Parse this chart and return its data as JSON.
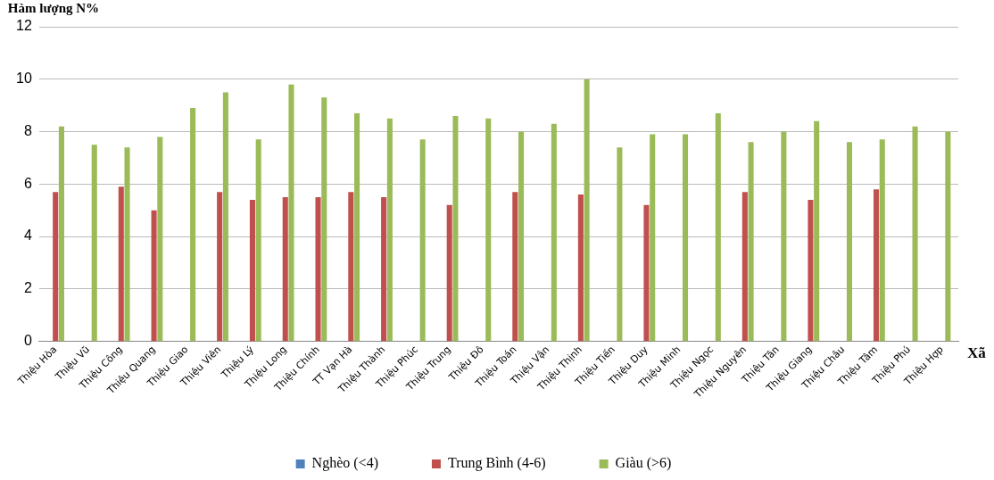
{
  "chart_data": {
    "type": "bar",
    "ylabel": "Hàm lượng N%",
    "xlabel": "Xã",
    "categories": [
      "Thiệu Hòa",
      "Thiệu Vũ",
      "Thiệu Công",
      "Thiệu Quang",
      "Thiệu Giao",
      "Thiệu Viên",
      "Thiệu Lý",
      "Thiệu Long",
      "Thiệu Chính",
      "TT Vạn Hà",
      "Thiệu Thành",
      "Thiệu Phúc",
      "Thiệu Trung",
      "Thiệu Đô",
      "Thiệu Toán",
      "Thiệu Vận",
      "Thiệu Thịnh",
      "Thiệu Tiến",
      "Thiệu Duy",
      "Thiệu Minh",
      "Thiệu Ngọc",
      "Thiệu Nguyên",
      "Thiệu Tân",
      "Thiệu Giang",
      "Thiệu Châu",
      "Thiệu Tâm",
      "Thiệu Phú",
      "Thiệu Hợp"
    ],
    "series": [
      {
        "name": "Nghèo (<4)",
        "color": "#4f81bd",
        "values": [
          null,
          null,
          null,
          null,
          null,
          null,
          null,
          null,
          null,
          null,
          null,
          null,
          null,
          null,
          null,
          null,
          null,
          null,
          null,
          null,
          null,
          null,
          null,
          null,
          null,
          null,
          null,
          null
        ]
      },
      {
        "name": "Trung Bình (4-6)",
        "color": "#c0504d",
        "values": [
          5.7,
          null,
          5.9,
          5.0,
          null,
          5.7,
          5.4,
          5.5,
          5.5,
          5.7,
          5.5,
          null,
          5.2,
          null,
          5.7,
          null,
          5.6,
          null,
          5.2,
          null,
          null,
          5.7,
          null,
          5.4,
          null,
          5.8,
          null,
          null
        ]
      },
      {
        "name": "Giàu (>6)",
        "color": "#9bbb59",
        "values": [
          8.2,
          7.5,
          7.4,
          7.8,
          8.9,
          9.5,
          7.7,
          9.8,
          9.3,
          8.7,
          8.5,
          7.7,
          8.6,
          8.5,
          8.0,
          8.3,
          10.0,
          7.4,
          7.9,
          7.9,
          8.7,
          7.6,
          8.0,
          8.4,
          7.6,
          7.7,
          8.2,
          8.0
        ]
      }
    ],
    "ylim": [
      0,
      12
    ],
    "yticks": [
      0,
      2,
      4,
      6,
      8,
      10,
      12
    ],
    "grid": "y",
    "legend": "bottom"
  }
}
